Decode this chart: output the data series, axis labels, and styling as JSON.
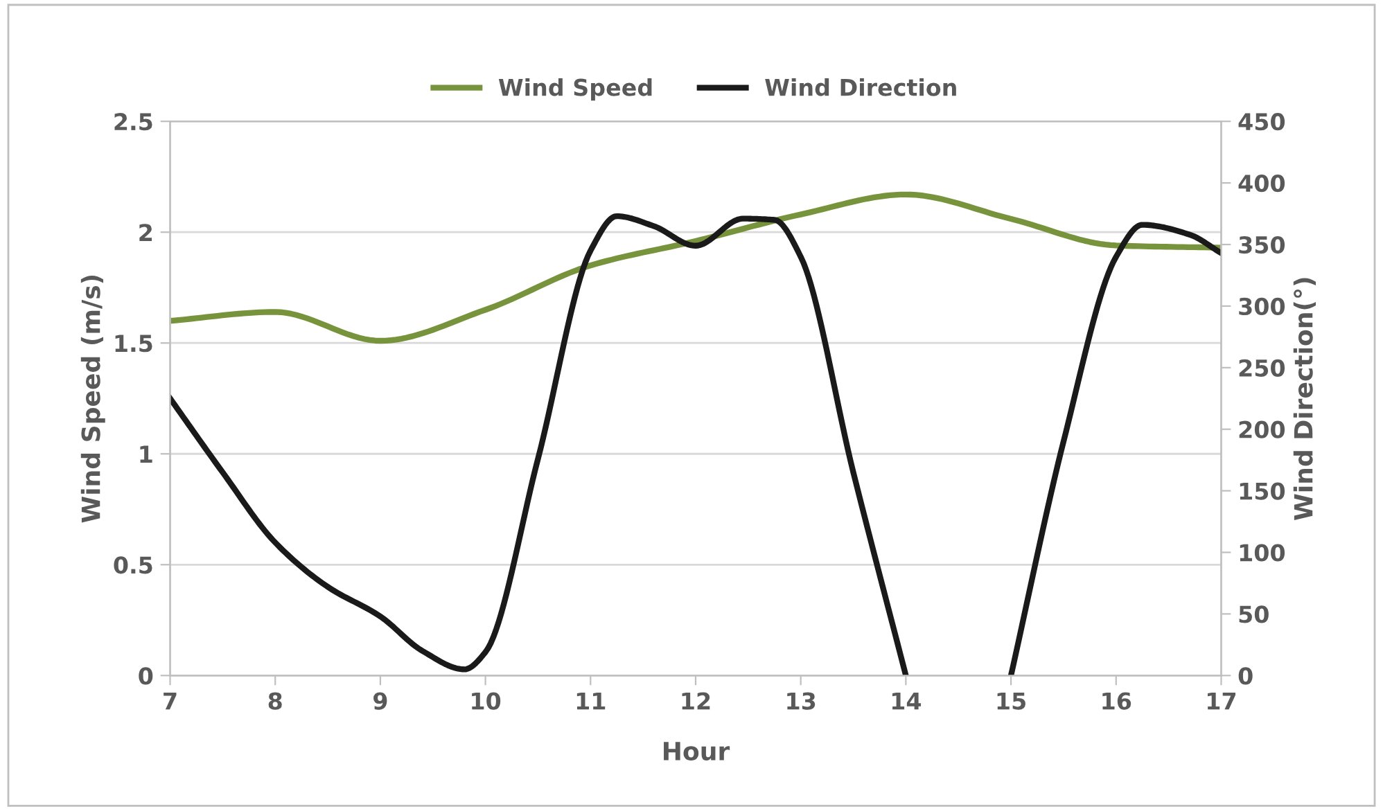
{
  "chart_data": {
    "type": "line",
    "xlabel": "Hour",
    "ylabel": "Wind Speed (m/s)",
    "y2label": "Wind Direction(°)",
    "x": [
      7,
      8,
      9,
      10,
      11,
      12,
      13,
      14,
      15,
      16,
      17
    ],
    "series": [
      {
        "name": "Wind Speed",
        "color": "#77933c",
        "values": [
          1.6,
          1.64,
          1.51,
          1.65,
          1.85,
          1.96,
          2.08,
          2.17,
          2.06,
          1.94,
          1.93
        ]
      },
      {
        "name": "Wind Direction",
        "color": "#1a1a1a",
        "axis": "y2",
        "x": [
          7,
          7.5,
          8,
          8.5,
          9,
          9.4,
          9.8,
          10,
          10.5,
          11,
          11.25,
          11.6,
          12,
          12.45,
          12.75,
          13,
          13.5,
          14,
          14.5,
          15,
          15.5,
          16,
          16.25,
          16.7,
          17
        ],
        "values": [
          225,
          165,
          108,
          72,
          48,
          20,
          5,
          19,
          176,
          345,
          373,
          365,
          349,
          371,
          370,
          340,
          165,
          0,
          null,
          0,
          190,
          340,
          366,
          358,
          343
        ]
      }
    ],
    "xlim": [
      7,
      17
    ],
    "xticks": [
      7,
      8,
      9,
      10,
      11,
      12,
      13,
      14,
      15,
      16,
      17
    ],
    "ylim": [
      0,
      2.5
    ],
    "yticks": [
      0,
      0.5,
      1,
      1.5,
      2,
      2.5
    ],
    "y2lim": [
      0,
      450
    ],
    "y2ticks": [
      0,
      50,
      100,
      150,
      200,
      250,
      300,
      350,
      400,
      450
    ],
    "grid": "y",
    "legend": "top",
    "marker": "none",
    "line_style": "solid"
  }
}
